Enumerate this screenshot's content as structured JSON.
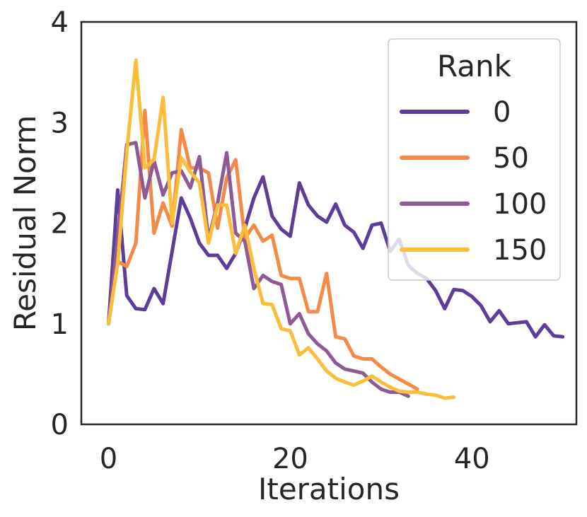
{
  "chart_data": {
    "type": "line",
    "xlabel": "Iterations",
    "ylabel": "Residual Norm",
    "xlim": [
      -3,
      51.5
    ],
    "ylim": [
      0,
      4
    ],
    "xticks": [
      0,
      20,
      40
    ],
    "yticks": [
      0,
      1,
      2,
      3,
      4
    ],
    "grid": false,
    "legend": {
      "title": "Rank",
      "placement": "top-right"
    },
    "series": [
      {
        "name": "0",
        "color": "#5e3c99",
        "x": [
          0,
          1,
          2,
          3,
          4,
          5,
          6,
          7,
          8,
          9,
          10,
          11,
          12,
          13,
          14,
          15,
          16,
          17,
          18,
          19,
          20,
          21,
          22,
          23,
          24,
          25,
          26,
          27,
          28,
          29,
          30,
          31,
          32,
          33,
          34,
          35,
          36,
          37,
          38,
          39,
          40,
          41,
          42,
          43,
          44,
          45,
          46,
          47,
          48,
          49,
          50
        ],
        "y": [
          1.0,
          2.33,
          1.28,
          1.15,
          1.14,
          1.35,
          1.2,
          1.72,
          2.25,
          2.05,
          1.8,
          1.68,
          1.68,
          1.55,
          1.7,
          1.95,
          2.25,
          2.46,
          2.07,
          1.94,
          1.87,
          2.4,
          2.18,
          2.07,
          2.01,
          2.19,
          1.98,
          1.91,
          1.75,
          1.98,
          2.0,
          1.72,
          1.84,
          1.58,
          1.5,
          1.45,
          1.33,
          1.15,
          1.34,
          1.33,
          1.27,
          1.18,
          1.02,
          1.13,
          1.0,
          1.01,
          1.02,
          0.87,
          0.99,
          0.88,
          0.87
        ]
      },
      {
        "name": "50",
        "color": "#f48a47",
        "x": [
          0,
          1,
          2,
          3,
          4,
          5,
          6,
          7,
          8,
          9,
          10,
          11,
          12,
          13,
          14,
          15,
          16,
          17,
          18,
          19,
          20,
          21,
          22,
          23,
          24,
          25,
          26,
          27,
          28,
          29,
          30,
          31,
          32,
          33,
          34
        ],
        "y": [
          1.0,
          1.62,
          1.57,
          1.8,
          3.12,
          1.9,
          2.2,
          1.97,
          2.93,
          2.55,
          2.55,
          2.5,
          1.95,
          2.45,
          2.63,
          1.85,
          1.98,
          1.82,
          1.88,
          1.48,
          1.45,
          1.45,
          1.12,
          1.12,
          1.5,
          0.87,
          0.85,
          0.68,
          0.65,
          0.65,
          0.57,
          0.5,
          0.45,
          0.4,
          0.35
        ]
      },
      {
        "name": "100",
        "color": "#8e5a95",
        "x": [
          0,
          1,
          2,
          3,
          4,
          5,
          6,
          7,
          8,
          9,
          10,
          11,
          12,
          13,
          14,
          15,
          16,
          17,
          18,
          19,
          20,
          21,
          22,
          23,
          24,
          25,
          26,
          27,
          28,
          29,
          30,
          31,
          32,
          33
        ],
        "y": [
          1.0,
          1.85,
          2.78,
          2.8,
          2.25,
          2.62,
          2.28,
          2.5,
          2.52,
          2.35,
          2.66,
          1.84,
          2.2,
          2.7,
          1.9,
          1.82,
          1.35,
          1.48,
          1.42,
          1.39,
          1.0,
          1.1,
          0.9,
          0.8,
          0.73,
          0.61,
          0.55,
          0.53,
          0.51,
          0.42,
          0.35,
          0.32,
          0.32,
          0.28
        ]
      },
      {
        "name": "150",
        "color": "#fbbd3a",
        "x": [
          0,
          1,
          2,
          3,
          4,
          5,
          6,
          7,
          8,
          9,
          10,
          11,
          12,
          13,
          14,
          15,
          16,
          17,
          18,
          19,
          20,
          21,
          22,
          23,
          24,
          25,
          26,
          27,
          28,
          29,
          30,
          31,
          32,
          33,
          34,
          35,
          36,
          37,
          38
        ],
        "y": [
          1.0,
          1.6,
          2.7,
          3.62,
          2.55,
          2.63,
          3.25,
          2.0,
          2.65,
          2.51,
          2.4,
          1.8,
          2.18,
          2.18,
          1.7,
          1.98,
          1.55,
          1.2,
          1.19,
          0.95,
          0.93,
          0.69,
          0.76,
          0.65,
          0.53,
          0.46,
          0.42,
          0.39,
          0.43,
          0.48,
          0.42,
          0.37,
          0.33,
          0.32,
          0.32,
          0.3,
          0.29,
          0.26,
          0.27
        ]
      }
    ]
  }
}
